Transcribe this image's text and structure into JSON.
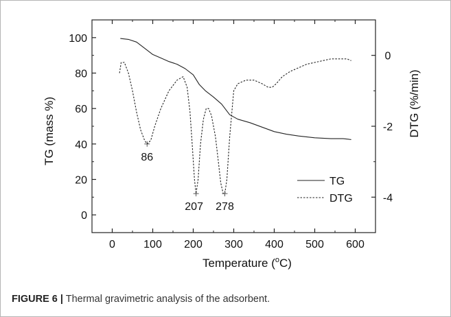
{
  "caption": {
    "label": "FIGURE 6 |",
    "text": " Thermal gravimetric analysis of the adsorbent."
  },
  "chart_data": {
    "type": "line",
    "xlabel_main": "Temperature (",
    "xlabel_sup": "o",
    "xlabel_end": "C)",
    "ylabel_left": "TG (mass %)",
    "ylabel_right": "DTG (%/min)",
    "xlim": [
      -50,
      650
    ],
    "ylim_left": [
      -10,
      110
    ],
    "ylim_right": [
      -5,
      1
    ],
    "x_ticks": [
      0,
      100,
      200,
      300,
      400,
      500,
      600
    ],
    "y_ticks_left": [
      0,
      20,
      40,
      60,
      80,
      100
    ],
    "y_ticks_right": [
      0,
      -2,
      -4
    ],
    "legend_position": "lower-right",
    "series": [
      {
        "name": "TG",
        "axis": "left",
        "style": "solid",
        "x": [
          20,
          40,
          60,
          80,
          100,
          120,
          140,
          160,
          180,
          200,
          215,
          230,
          250,
          270,
          290,
          310,
          340,
          370,
          400,
          430,
          460,
          500,
          540,
          570,
          590
        ],
        "y": [
          99.5,
          99.0,
          97.5,
          94.0,
          90.5,
          88.5,
          86.5,
          85.0,
          82.5,
          79.0,
          73.5,
          70.0,
          66.5,
          62.5,
          56.5,
          54.0,
          52.0,
          49.5,
          47.0,
          45.5,
          44.5,
          43.5,
          43.0,
          43.0,
          42.5
        ]
      },
      {
        "name": "DTG",
        "axis": "right",
        "style": "dashed",
        "x": [
          18,
          22,
          30,
          40,
          50,
          60,
          70,
          80,
          86,
          95,
          105,
          120,
          140,
          160,
          175,
          185,
          192,
          198,
          203,
          207,
          212,
          218,
          225,
          232,
          238,
          245,
          255,
          262,
          268,
          274,
          278,
          283,
          290,
          300,
          310,
          330,
          350,
          370,
          385,
          395,
          405,
          420,
          440,
          460,
          480,
          500,
          520,
          540,
          560,
          580,
          590
        ],
        "y": [
          -0.5,
          -0.2,
          -0.2,
          -0.5,
          -1.0,
          -1.6,
          -2.1,
          -2.4,
          -2.5,
          -2.4,
          -2.0,
          -1.5,
          -1.0,
          -0.7,
          -0.6,
          -0.9,
          -1.6,
          -2.6,
          -3.5,
          -3.9,
          -3.5,
          -2.5,
          -1.8,
          -1.5,
          -1.5,
          -1.7,
          -2.3,
          -3.0,
          -3.6,
          -3.9,
          -3.9,
          -3.5,
          -2.3,
          -1.0,
          -0.8,
          -0.7,
          -0.7,
          -0.8,
          -0.9,
          -0.9,
          -0.8,
          -0.6,
          -0.45,
          -0.35,
          -0.25,
          -0.2,
          -0.15,
          -0.1,
          -0.1,
          -0.1,
          -0.15
        ]
      }
    ],
    "annotations": [
      {
        "text": "86",
        "x": 86,
        "y": -2.5
      },
      {
        "text": "207",
        "x": 207,
        "y": -3.9
      },
      {
        "text": "278",
        "x": 278,
        "y": -3.9
      }
    ]
  }
}
